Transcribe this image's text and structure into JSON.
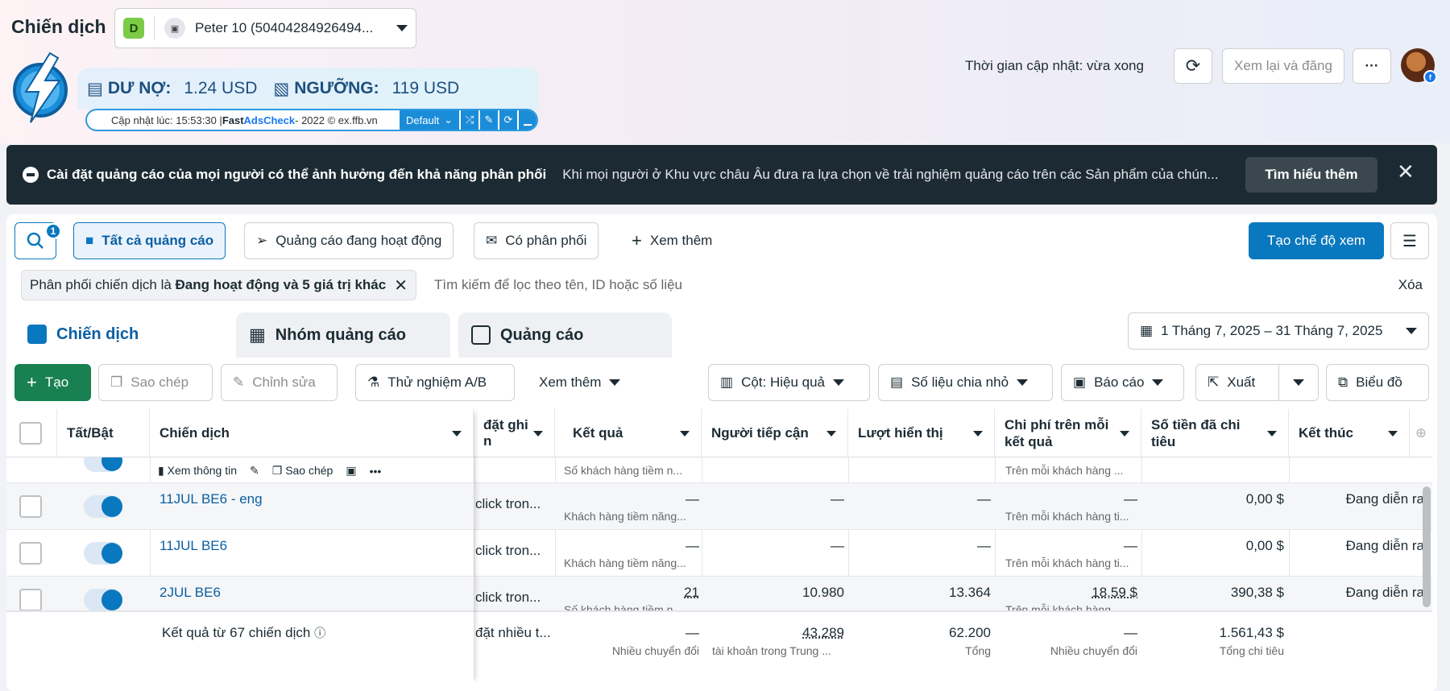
{
  "header": {
    "title": "Chiến dịch",
    "account_badge": "D",
    "account_name": "Peter 10 (50404284926494...",
    "update_time": "Thời gian cập nhật: vừa xong",
    "review_button": "Xem lại và đăng",
    "more_button": "···"
  },
  "adscheck": {
    "debt_label": "DƯ NỢ:",
    "debt_value": "1.24 USD",
    "threshold_label": "NGƯỠNG:",
    "threshold_value": "119 USD",
    "updated_prefix": "Cập nhật lúc: 15:53:30 | ",
    "brand_fast": "Fast ",
    "brand_name": "AdsCheck",
    "suffix": " - 2022 © ex.ffb.vn",
    "mode": "Default"
  },
  "banner": {
    "title": "Cài đặt quảng cáo của mọi người có thể ảnh hưởng đến khả năng phân phối",
    "body": "Khi mọi người ở Khu vực châu Âu đưa ra lựa chọn về trải nghiệm quảng cáo trên các Sản phẩm của chún...",
    "learn_more": "Tìm hiểu thêm"
  },
  "filters": {
    "search_count": "1",
    "all_ads": "Tất cả quảng cáo",
    "active_ads": "Quảng cáo đang hoạt động",
    "delivering": "Có phân phối",
    "see_more": "Xem thêm",
    "create_view": "Tạo chế độ xem",
    "chip_prefix": "Phân phối chiến dịch là ",
    "chip_value": "Đang hoạt động và 5 giá trị khác",
    "search_placeholder": "Tìm kiếm để lọc theo tên, ID hoặc số liệu",
    "clear": "Xóa"
  },
  "tabs": [
    {
      "label": "Chiến dịch"
    },
    {
      "label": "Nhóm quảng cáo"
    },
    {
      "label": "Quảng cáo"
    }
  ],
  "date_range": "1 Tháng 7, 2025 – 31 Tháng 7, 2025",
  "toolbar": {
    "create": "Tạo",
    "duplicate": "Sao chép",
    "edit": "Chỉnh sửa",
    "ab_test": "Thử nghiệm A/B",
    "see_more": "Xem thêm",
    "columns": "Cột: Hiệu quả",
    "breakdown": "Số liệu chia nhỏ",
    "reports": "Báo cáo",
    "export": "Xuất",
    "chart": "Biểu đồ"
  },
  "table": {
    "headers": {
      "toggle": "Tất/Bật",
      "campaign": "Chiến dịch",
      "bid": "đặt ghi",
      "bid2": "n",
      "results": "Kết quả",
      "reach": "Người tiếp cận",
      "impressions": "Lượt hiển thị",
      "cost_per": "Chi phí trên mỗi kết quả",
      "spent": "Số tiền đã chi tiêu",
      "ends": "Kết thúc"
    },
    "partial_row": {
      "actions": [
        "Xem thông tin",
        "Sao chép"
      ],
      "results_sub": "Số khách hàng tiềm n...",
      "cost_sub": "Trên mỗi khách hàng ..."
    },
    "rows": [
      {
        "name": "11JUL BE6 - eng",
        "bid": "click tron...",
        "results": "—",
        "results_sub": "Khách hàng tiềm năng...",
        "reach": "—",
        "impressions": "—",
        "cost": "—",
        "cost_sub": "Trên mỗi khách hàng ti...",
        "spent": "0,00 $",
        "ends": "Đang diễn ra"
      },
      {
        "name": "11JUL BE6",
        "bid": "click tron...",
        "results": "—",
        "results_sub": "Khách hàng tiềm năng...",
        "reach": "—",
        "impressions": "—",
        "cost": "—",
        "cost_sub": "Trên mỗi khách hàng ti...",
        "spent": "0,00 $",
        "ends": "Đang diễn ra"
      },
      {
        "name": "2JUL BE6",
        "bid": "click tron...",
        "results": "21",
        "results_sub": "Số khách hàng tiềm n...",
        "reach": "10.980",
        "impressions": "13.364",
        "cost": "18,59 $",
        "cost_sub": "Trên mỗi khách hàng ...",
        "spent": "390,38 $",
        "ends": "Đang diễn ra"
      }
    ],
    "totals": {
      "label": "Kết quả từ 67 chiến dịch",
      "bid": "đặt nhiều t...",
      "results": "—",
      "results_sub": "Nhiều chuyển đổi",
      "reach": "43.289",
      "reach_sub": "tài khoản trong Trung ...",
      "impressions": "62.200",
      "impressions_sub": "Tổng",
      "cost": "—",
      "cost_sub": "Nhiều chuyển đổi",
      "spent": "1.561,43 $",
      "spent_sub": "Tổng chi tiêu"
    }
  },
  "colors": {
    "primary": "#0a78be",
    "create_green": "#188051",
    "banner_bg": "#1c2b33"
  }
}
